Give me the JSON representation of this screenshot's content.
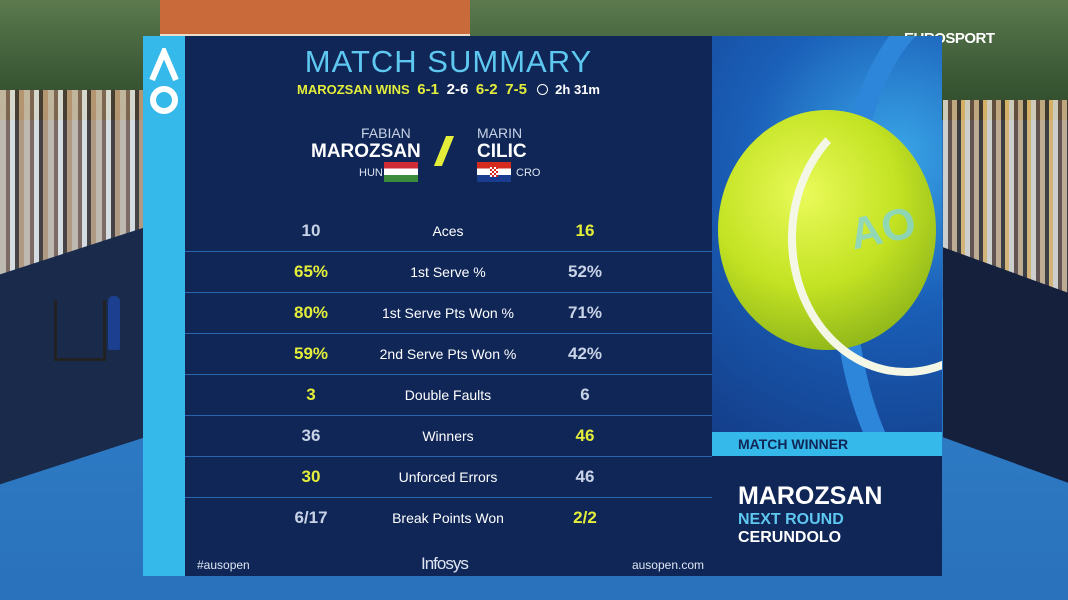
{
  "broadcaster": "EUROSPORT",
  "header": {
    "title": "MATCH SUMMARY",
    "winner_text": "MAROZSAN WINS",
    "sets": [
      "6-1",
      "2-6",
      "6-2",
      "7-5"
    ],
    "duration": "2h 31m"
  },
  "players": {
    "left": {
      "first": "FABIAN",
      "last": "MAROZSAN",
      "nation": "HUN"
    },
    "right": {
      "first": "MARIN",
      "last": "CILIC",
      "nation": "CRO"
    }
  },
  "stats": [
    {
      "label": "Aces",
      "left": "10",
      "right": "16",
      "leader": "right"
    },
    {
      "label": "1st Serve %",
      "left": "65%",
      "right": "52%",
      "leader": "left"
    },
    {
      "label": "1st Serve Pts Won %",
      "left": "80%",
      "right": "71%",
      "leader": "left"
    },
    {
      "label": "2nd Serve Pts Won %",
      "left": "59%",
      "right": "42%",
      "leader": "left"
    },
    {
      "label": "Double Faults",
      "left": "3",
      "right": "6",
      "leader": "left"
    },
    {
      "label": "Winners",
      "left": "36",
      "right": "46",
      "leader": "right"
    },
    {
      "label": "Unforced Errors",
      "left": "30",
      "right": "46",
      "leader": "left"
    },
    {
      "label": "Break Points Won",
      "left": "6/17",
      "right": "2/2",
      "leader": "right"
    }
  ],
  "footer": {
    "hashtag": "#ausopen",
    "sponsor": "Infosys",
    "website": "ausopen.com"
  },
  "winner_box": {
    "badge": "MATCH WINNER",
    "name": "MAROZSAN",
    "next_round_label": "NEXT ROUND",
    "opponent": "CERUNDOLO"
  },
  "colors": {
    "panel": "#0f2657",
    "accent_cyan": "#35b8ea",
    "highlight_yellow": "#e4ee3a"
  }
}
